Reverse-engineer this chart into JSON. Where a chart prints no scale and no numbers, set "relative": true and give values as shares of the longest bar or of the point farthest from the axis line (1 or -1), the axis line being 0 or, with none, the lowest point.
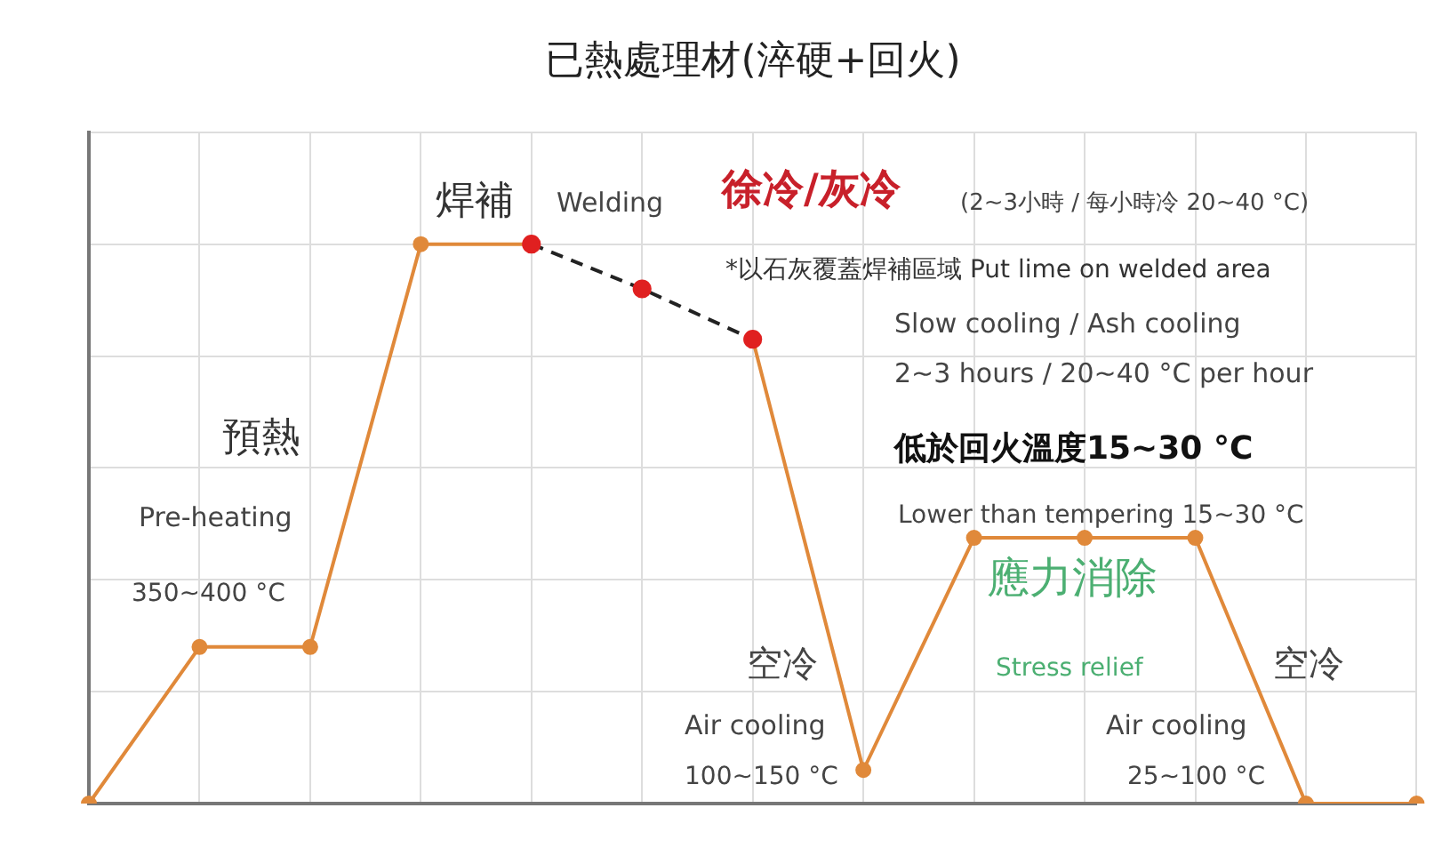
{
  "chart_data": {
    "type": "line",
    "relative": true,
    "title": "已熱處理材(淬硬+回火)",
    "categories": [
      null,
      null,
      null,
      null,
      null,
      null,
      null,
      null,
      null,
      null,
      null,
      null,
      null
    ],
    "series": [
      {
        "color": "#e0893a",
        "line_style": "solid",
        "values": [
          0,
          0.28,
          0.28,
          1,
          1,
          null,
          0.83,
          0.06,
          0.475,
          0.475,
          0.475,
          0,
          0
        ]
      },
      {
        "color": "#222222",
        "line_style": "dashed",
        "colors": [
          null,
          null,
          null,
          null,
          "#e02020",
          "#e02020",
          "#e02020",
          null,
          null,
          null,
          null,
          null,
          null
        ],
        "values": [
          null,
          null,
          null,
          null,
          1,
          0.92,
          0.83,
          null,
          null,
          null,
          null,
          null,
          null
        ]
      }
    ],
    "annotations": [
      "焊補",
      "Welding",
      "徐冷/灰冷",
      "(2~3小時 / 每小時冷 20~40 °C)",
      "*以石灰覆蓋焊補區域 Put lime on welded area",
      "Slow cooling / Ash cooling",
      "2~3 hours / 20~40 °C per hour",
      "低於回火溫度15~30 °C",
      "Lower than tempering 15~30 °C",
      "應力消除",
      "Stress relief",
      "空冷",
      "Air cooling",
      "100~150 °C",
      "空冷",
      "Air cooling",
      "25~100 °C",
      "預熱",
      "Pre-heating",
      "350~400 °C"
    ],
    "grid": true,
    "legend": false,
    "marker": "circle"
  }
}
